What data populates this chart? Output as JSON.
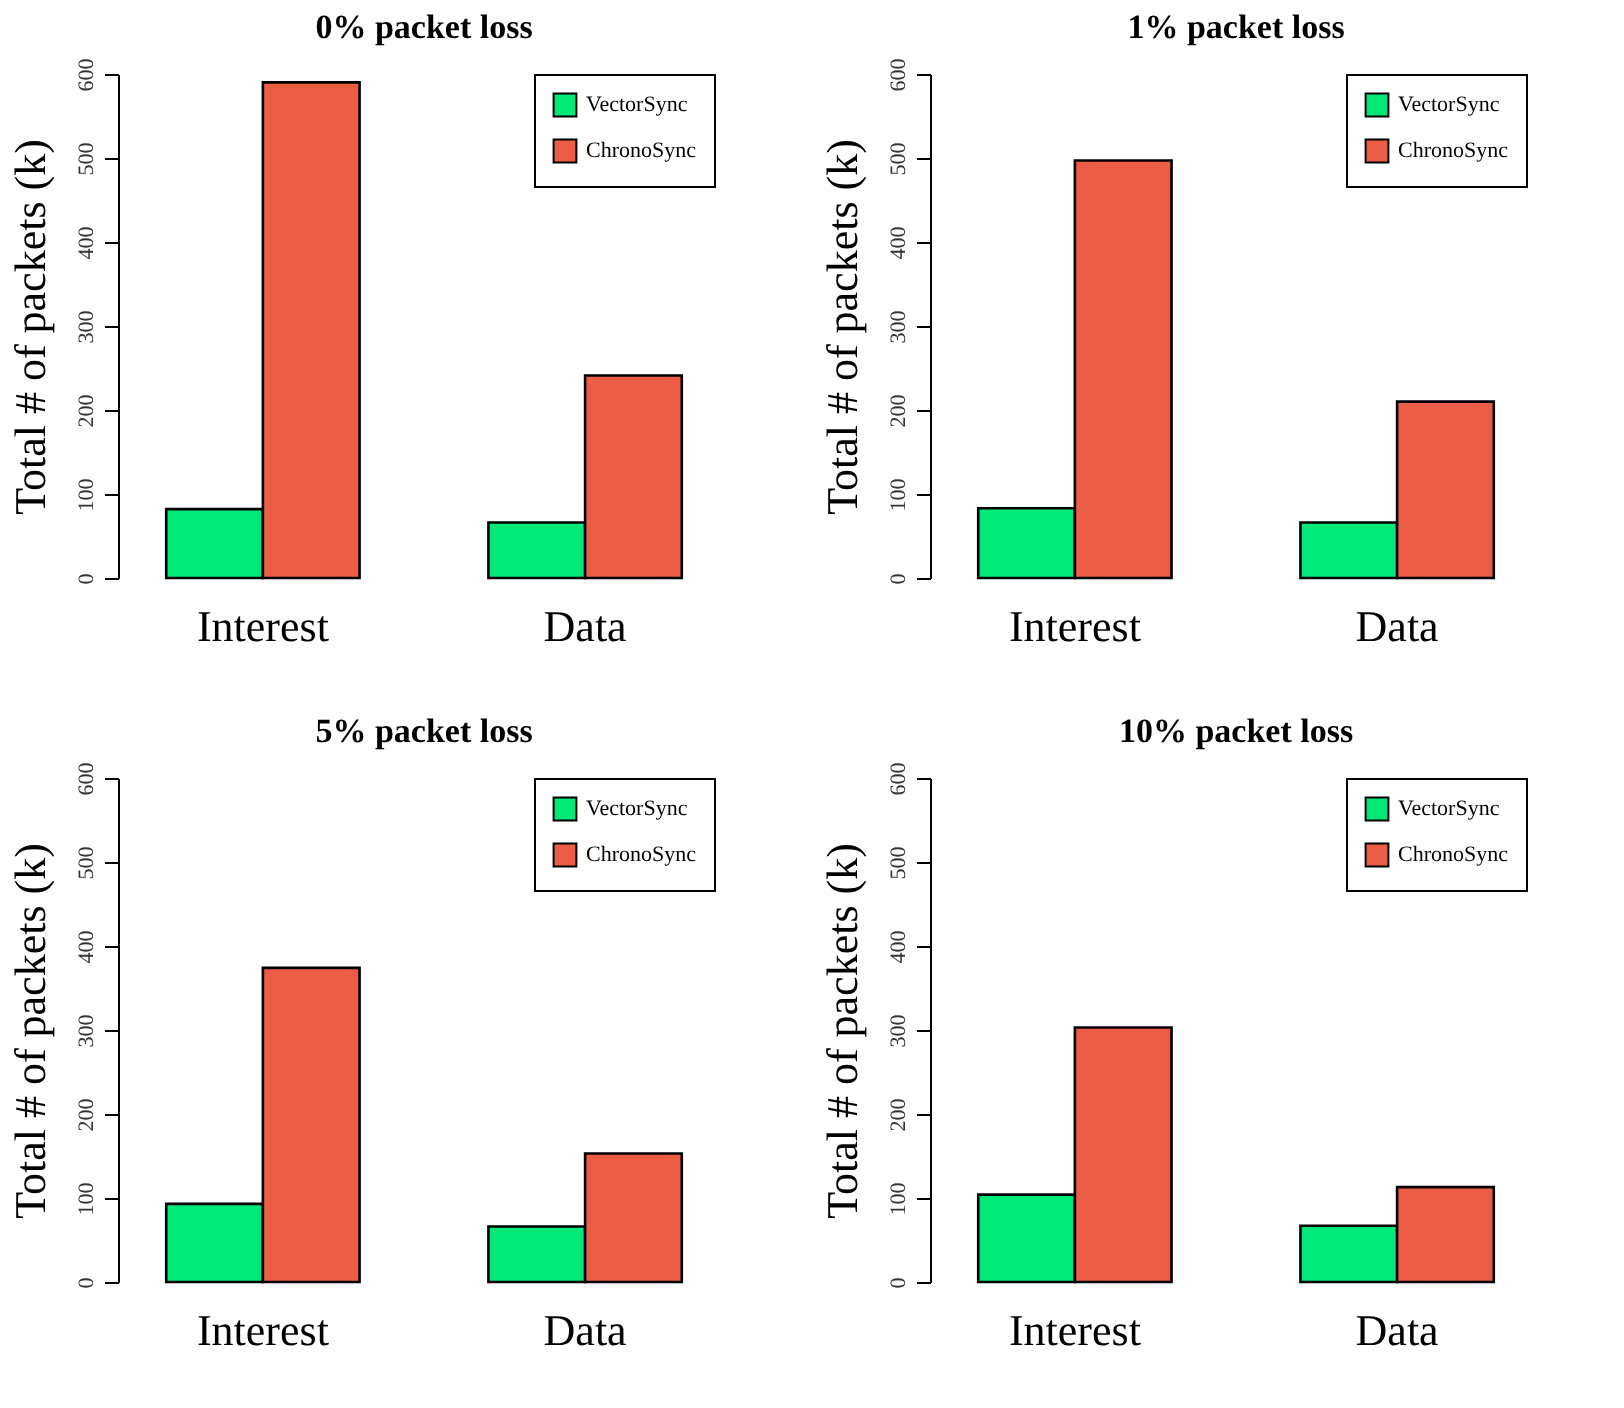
{
  "chart_data": [
    {
      "type": "bar",
      "title": "0% packet loss",
      "ylabel": "Total # of packets (k)",
      "categories": [
        "Interest",
        "Data"
      ],
      "ylim": [
        0,
        600
      ],
      "yticks": [
        0,
        100,
        200,
        300,
        400,
        500,
        600
      ],
      "legend": "top right",
      "series": [
        {
          "name": "VectorSync",
          "color": "#00e878",
          "values": [
            82,
            66
          ]
        },
        {
          "name": "ChronoSync",
          "color": "#ec5d45",
          "values": [
            590,
            241
          ]
        }
      ]
    },
    {
      "type": "bar",
      "title": "1% packet loss",
      "ylabel": "Total # of packets (k)",
      "categories": [
        "Interest",
        "Data"
      ],
      "ylim": [
        0,
        600
      ],
      "yticks": [
        0,
        100,
        200,
        300,
        400,
        500,
        600
      ],
      "legend": "top right",
      "series": [
        {
          "name": "VectorSync",
          "color": "#00e878",
          "values": [
            83,
            66
          ]
        },
        {
          "name": "ChronoSync",
          "color": "#ec5d45",
          "values": [
            497,
            210
          ]
        }
      ]
    },
    {
      "type": "bar",
      "title": "5% packet loss",
      "ylabel": "Total # of packets (k)",
      "categories": [
        "Interest",
        "Data"
      ],
      "ylim": [
        0,
        600
      ],
      "yticks": [
        0,
        100,
        200,
        300,
        400,
        500,
        600
      ],
      "legend": "top right",
      "series": [
        {
          "name": "VectorSync",
          "color": "#00e878",
          "values": [
            93,
            66
          ]
        },
        {
          "name": "ChronoSync",
          "color": "#ec5d45",
          "values": [
            374,
            153
          ]
        }
      ]
    },
    {
      "type": "bar",
      "title": "10% packet loss",
      "ylabel": "Total # of packets (k)",
      "categories": [
        "Interest",
        "Data"
      ],
      "ylim": [
        0,
        600
      ],
      "yticks": [
        0,
        100,
        200,
        300,
        400,
        500,
        600
      ],
      "legend": "top right",
      "series": [
        {
          "name": "VectorSync",
          "color": "#00e878",
          "values": [
            104,
            67
          ]
        },
        {
          "name": "ChronoSync",
          "color": "#ec5d45",
          "values": [
            303,
            113
          ]
        }
      ]
    }
  ]
}
